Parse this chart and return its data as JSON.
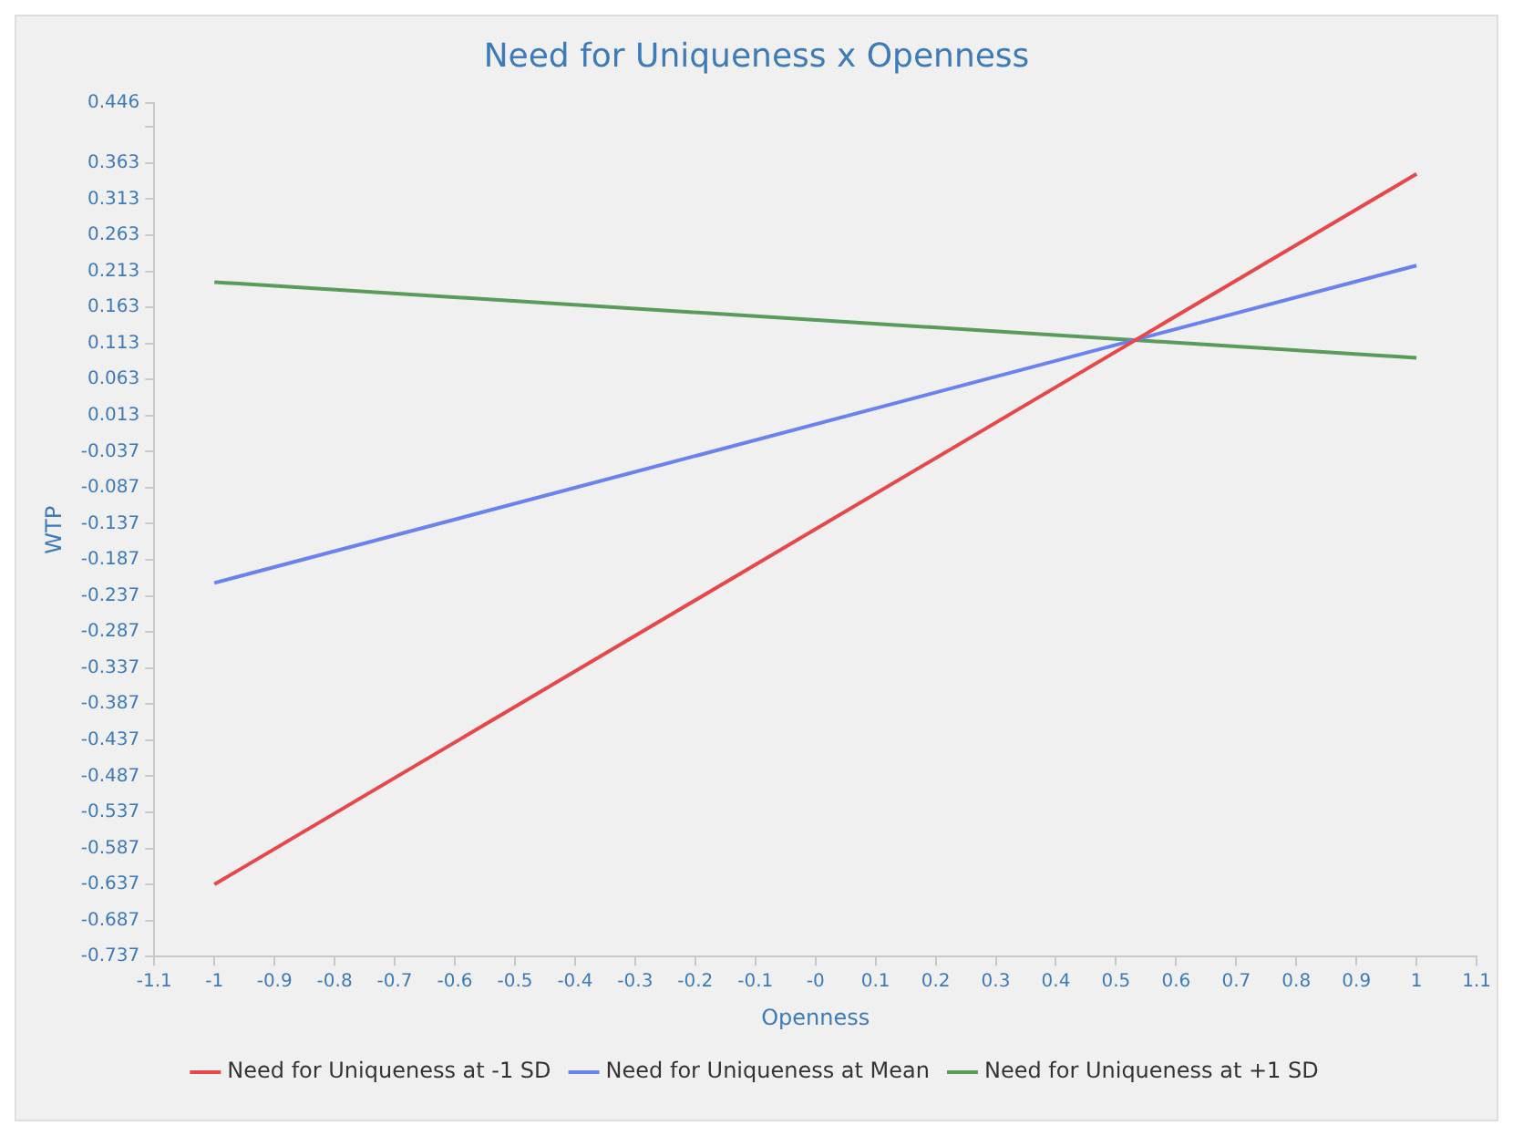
{
  "chart_data": {
    "type": "line",
    "title": "Need for Uniqueness x Openness",
    "xlabel": "Openness",
    "ylabel": "WTP",
    "x": [
      -1,
      1
    ],
    "series": [
      {
        "name": "Need for Uniqueness at -1 SD",
        "color": "#e8474a",
        "values": [
          -0.637,
          0.348
        ]
      },
      {
        "name": "Need for Uniqueness at Mean",
        "color": "#6a82f0",
        "values": [
          -0.219,
          0.221
        ]
      },
      {
        "name": "Need for Uniqueness at +1 SD",
        "color": "#5a9a5a",
        "values": [
          0.198,
          0.093
        ]
      }
    ],
    "xlim": [
      -1.1,
      1.1
    ],
    "xticks": [
      -1.1,
      -1,
      -0.9,
      -0.8,
      -0.7,
      -0.6,
      -0.5,
      -0.4,
      -0.3,
      -0.2,
      -0.1,
      {
        "value": 0,
        "label": "-0"
      },
      0.1,
      0.2,
      0.3,
      0.4,
      0.5,
      0.6,
      0.7,
      0.8,
      0.9,
      1,
      1.1
    ],
    "ylim": [
      -0.737,
      0.446
    ],
    "yticks": [
      -0.737,
      -0.687,
      -0.637,
      -0.587,
      -0.537,
      -0.487,
      -0.437,
      -0.387,
      -0.337,
      -0.287,
      -0.237,
      -0.187,
      -0.137,
      -0.087,
      -0.037,
      0.013,
      0.063,
      0.113,
      0.163,
      0.213,
      0.263,
      0.313,
      0.363,
      {
        "value": 0.413,
        "label": null
      },
      0.446
    ],
    "grid": false,
    "legend": "bottom",
    "marker": "none",
    "line_style": "solid"
  }
}
